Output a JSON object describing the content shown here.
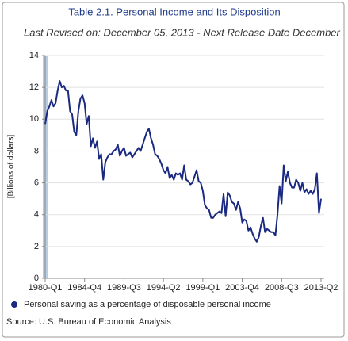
{
  "chart_data": {
    "type": "line",
    "title": "Table 2.1. Personal Income and Its Disposition",
    "subtitle": "Last Revised on: December 05, 2013 - Next Release Date December",
    "y_label": "[Billions of dollars]",
    "source": "Source: U.S. Bureau of Economic Analysis",
    "categories": [
      "1980-Q1",
      null,
      null,
      null,
      null,
      null,
      null,
      null,
      null,
      null,
      null,
      null,
      null,
      null,
      null,
      null,
      null,
      null,
      null,
      "1984-Q4",
      null,
      null,
      null,
      null,
      null,
      null,
      null,
      null,
      null,
      null,
      null,
      null,
      null,
      null,
      null,
      null,
      null,
      null,
      "1989-Q3",
      null,
      null,
      null,
      null,
      null,
      null,
      null,
      null,
      null,
      null,
      null,
      null,
      null,
      null,
      null,
      null,
      null,
      null,
      "1994-Q2",
      null,
      null,
      null,
      null,
      null,
      null,
      null,
      null,
      null,
      null,
      null,
      null,
      null,
      null,
      null,
      null,
      null,
      null,
      "1999-Q1",
      null,
      null,
      null,
      null,
      null,
      null,
      null,
      null,
      null,
      null,
      null,
      null,
      null,
      null,
      null,
      null,
      null,
      null,
      "2003-Q4",
      null,
      null,
      null,
      null,
      null,
      null,
      null,
      null,
      null,
      null,
      null,
      null,
      null,
      null,
      null,
      null,
      null,
      null,
      "2008-Q3",
      null,
      null,
      null,
      null,
      null,
      null,
      null,
      null,
      null,
      null,
      null,
      null,
      null,
      null,
      null,
      null,
      null,
      null,
      "2013-Q2"
    ],
    "series": [
      {
        "name": "Personal saving as a percentage of disposable personal income",
        "color": "#1a2a80",
        "values": [
          9.7,
          10.5,
          10.8,
          11.2,
          10.8,
          11.0,
          11.8,
          12.4,
          12.0,
          12.1,
          11.8,
          11.8,
          10.5,
          10.3,
          9.2,
          9.0,
          10.5,
          11.3,
          11.5,
          11.0,
          9.7,
          10.2,
          8.3,
          8.8,
          8.2,
          8.6,
          7.5,
          7.8,
          6.2,
          7.3,
          7.6,
          7.8,
          7.8,
          8.0,
          8.1,
          8.4,
          7.7,
          8.0,
          8.2,
          7.7,
          7.8,
          7.9,
          7.6,
          7.8,
          8.0,
          8.2,
          8.0,
          8.4,
          8.8,
          9.2,
          9.4,
          8.8,
          8.4,
          7.8,
          7.7,
          7.5,
          7.2,
          6.8,
          6.6,
          7.0,
          6.3,
          6.5,
          6.2,
          6.6,
          6.5,
          6.6,
          6.2,
          7.1,
          6.2,
          6.1,
          5.9,
          6.0,
          6.4,
          6.8,
          6.1,
          6.0,
          5.5,
          4.6,
          4.4,
          4.3,
          3.8,
          3.8,
          4.0,
          4.1,
          4.2,
          4.1,
          5.3,
          3.9,
          5.4,
          5.2,
          4.8,
          4.7,
          4.3,
          4.8,
          4.4,
          3.5,
          3.7,
          3.6,
          3.0,
          3.2,
          2.8,
          2.5,
          2.3,
          2.6,
          3.3,
          3.8,
          2.9,
          3.1,
          3.0,
          2.9,
          2.9,
          2.7,
          4.0,
          5.8,
          4.7,
          7.1,
          6.1,
          6.7,
          6.0,
          5.7,
          5.7,
          6.2,
          6.0,
          5.5,
          6.0,
          5.4,
          5.6,
          5.3,
          5.5,
          5.3,
          5.6,
          6.6,
          4.1,
          5.0
        ]
      }
    ],
    "ylim": [
      0,
      14
    ],
    "yticks": [
      0,
      2,
      4,
      6,
      8,
      10,
      12,
      14
    ],
    "grid": true
  }
}
